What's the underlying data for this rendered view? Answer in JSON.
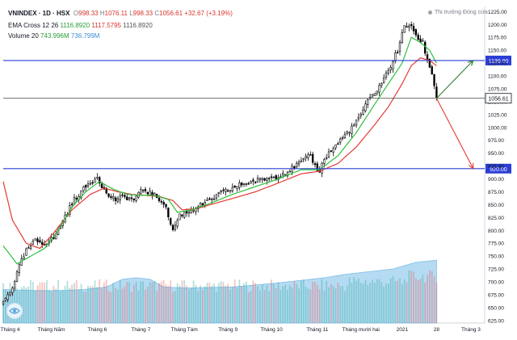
{
  "header": {
    "symbol": "VNINDEX · 1D · HSX",
    "open_label": "O",
    "open": "998.33",
    "high_label": "H",
    "high": "1076.11",
    "low_label": "L",
    "low": "998.33",
    "close_label": "C",
    "close": "1056.61",
    "change": "+32.67 (+3.19%)",
    "ema_label": "EMA Cross 12 26",
    "ema_v1": "1116.8920",
    "ema_v2": "1117.5795",
    "ema_v3": "1116.8920",
    "vol_label": "Volume 20",
    "vol_v1": "743.996M",
    "vol_v2": "736.799M",
    "market_status": "Thị trường Đóng cửa"
  },
  "colors": {
    "up": "#26a69a",
    "down": "#ef5350",
    "candle": "#000000",
    "ema_fast": "#2fbf3e",
    "ema_slow": "#e53935",
    "hline": "#2c3ed6",
    "price_line": "#555555",
    "arrow_up": "#2e7d32",
    "arrow_down": "#e53935",
    "volume_area": "#9ccfef"
  },
  "chart_data": {
    "type": "candlestick",
    "title": "VNINDEX · 1D · HSX",
    "ylim": [
      620,
      1235
    ],
    "y_ticks": [
      625,
      650,
      675,
      700,
      725,
      750,
      775,
      800,
      825,
      850,
      875,
      900,
      925,
      950,
      975,
      1000,
      1025,
      1050,
      1075,
      1100,
      1125,
      1150,
      1175,
      1200,
      1225
    ],
    "x_ticks": [
      "Tháng 4",
      "Tháng Năm",
      "Tháng 6",
      "Tháng 7",
      "Tháng Tám",
      "Tháng 9",
      "Tháng 10",
      "Tháng 11",
      "Tháng mười hai",
      "2021",
      "28",
      "Tháng 3"
    ],
    "x_tick_days": [
      3,
      21,
      41,
      60,
      79,
      98,
      117,
      137,
      156,
      174,
      189,
      204
    ],
    "price_path_days": [
      0,
      4,
      7,
      10,
      14,
      18,
      22,
      26,
      31,
      36,
      41,
      45,
      49,
      53,
      57,
      61,
      65,
      70,
      74,
      77,
      80,
      84,
      89,
      94,
      99,
      104,
      109,
      114,
      119,
      124,
      129,
      134,
      136,
      138,
      140,
      144,
      149,
      154,
      159,
      164,
      168,
      172,
      175,
      178,
      180,
      183,
      185,
      187,
      189
    ],
    "price_path": [
      660,
      690,
      730,
      760,
      780,
      775,
      785,
      820,
      860,
      885,
      905,
      870,
      860,
      865,
      860,
      880,
      870,
      855,
      800,
      830,
      835,
      845,
      855,
      870,
      880,
      890,
      895,
      900,
      905,
      915,
      930,
      945,
      925,
      915,
      940,
      960,
      985,
      1010,
      1050,
      1080,
      1110,
      1150,
      1195,
      1200,
      1175,
      1165,
      1130,
      1105,
      1060
    ],
    "ema_fast_days": [
      0,
      6,
      12,
      18,
      24,
      30,
      36,
      42,
      48,
      54,
      60,
      66,
      72,
      76,
      82,
      90,
      100,
      110,
      120,
      130,
      138,
      146,
      154,
      162,
      168,
      174,
      178,
      182,
      186,
      189
    ],
    "ema_fast": [
      770,
      735,
      750,
      765,
      800,
      845,
      875,
      895,
      880,
      870,
      868,
      868,
      860,
      835,
      840,
      852,
      870,
      885,
      900,
      918,
      918,
      945,
      990,
      1045,
      1085,
      1125,
      1175,
      1165,
      1150,
      1125
    ],
    "ema_slow_days": [
      0,
      4,
      10,
      16,
      22,
      30,
      38,
      44,
      50,
      56,
      62,
      68,
      74,
      78,
      84,
      92,
      100,
      110,
      120,
      130,
      138,
      146,
      154,
      162,
      168,
      174,
      178,
      182,
      186,
      189
    ],
    "ema_slow": [
      895,
      820,
      775,
      765,
      795,
      840,
      870,
      882,
      875,
      870,
      868,
      866,
      858,
      840,
      842,
      852,
      862,
      875,
      892,
      910,
      915,
      930,
      962,
      1005,
      1040,
      1085,
      1120,
      1135,
      1130,
      1120
    ],
    "volume_area_days": [
      0,
      15,
      25,
      35,
      45,
      52,
      58,
      64,
      70,
      80,
      100,
      120,
      140,
      150,
      160,
      170,
      180,
      189
    ],
    "volume_area": [
      685,
      683,
      683,
      685,
      690,
      705,
      708,
      705,
      690,
      688,
      690,
      698,
      708,
      715,
      720,
      725,
      738,
      742
    ],
    "hlines": [
      {
        "value": 1130,
        "label": "1130.00"
      },
      {
        "value": 920,
        "label": "920.00"
      }
    ],
    "current_price": {
      "value": 1056.61,
      "label": "1056.61"
    },
    "arrows": [
      {
        "from_day": 189,
        "from_value": 1056.61,
        "to_day": 205,
        "to_value": 1130,
        "direction": "up"
      },
      {
        "from_day": 189,
        "from_value": 1056.61,
        "to_day": 205,
        "to_value": 920,
        "direction": "down"
      }
    ]
  }
}
